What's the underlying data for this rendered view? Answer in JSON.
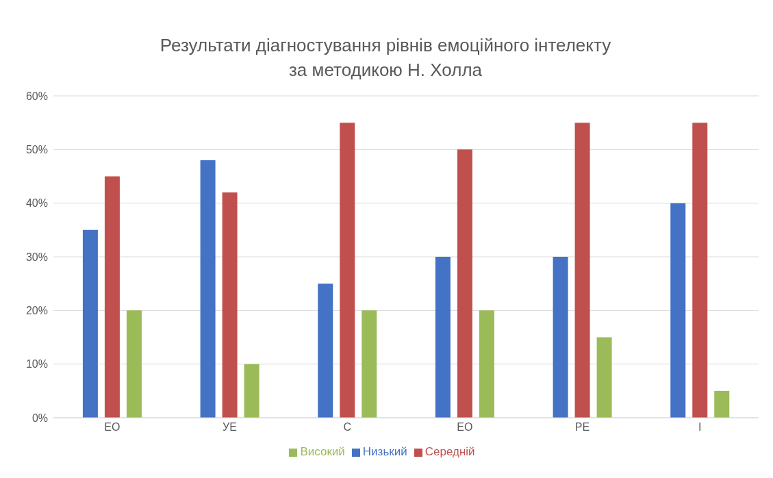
{
  "chart_data": {
    "type": "bar",
    "title": "Результати діагностування рівнів емоційного інтелекту\nза методикою Н. Холла",
    "categories": [
      "ЕО",
      "УЕ",
      "С",
      "ЕО",
      "РЕ",
      "І"
    ],
    "series": [
      {
        "name": "Низький",
        "color": "#4472c4",
        "values": [
          35,
          48,
          25,
          30,
          30,
          40
        ]
      },
      {
        "name": "Середній",
        "color": "#c0504d",
        "values": [
          45,
          42,
          55,
          50,
          55,
          55
        ]
      },
      {
        "name": "Високий",
        "color": "#9bbb59",
        "values": [
          20,
          10,
          20,
          20,
          15,
          5
        ]
      }
    ],
    "ylim": [
      0,
      60
    ],
    "yticks": [
      {
        "value": 0,
        "label": "0%"
      },
      {
        "value": 10,
        "label": "10%"
      },
      {
        "value": 20,
        "label": "20%"
      },
      {
        "value": 30,
        "label": "30%"
      },
      {
        "value": 40,
        "label": "40%"
      },
      {
        "value": 50,
        "label": "50%"
      },
      {
        "value": 60,
        "label": "60%"
      }
    ],
    "grid": "y",
    "legend": "bottom"
  }
}
